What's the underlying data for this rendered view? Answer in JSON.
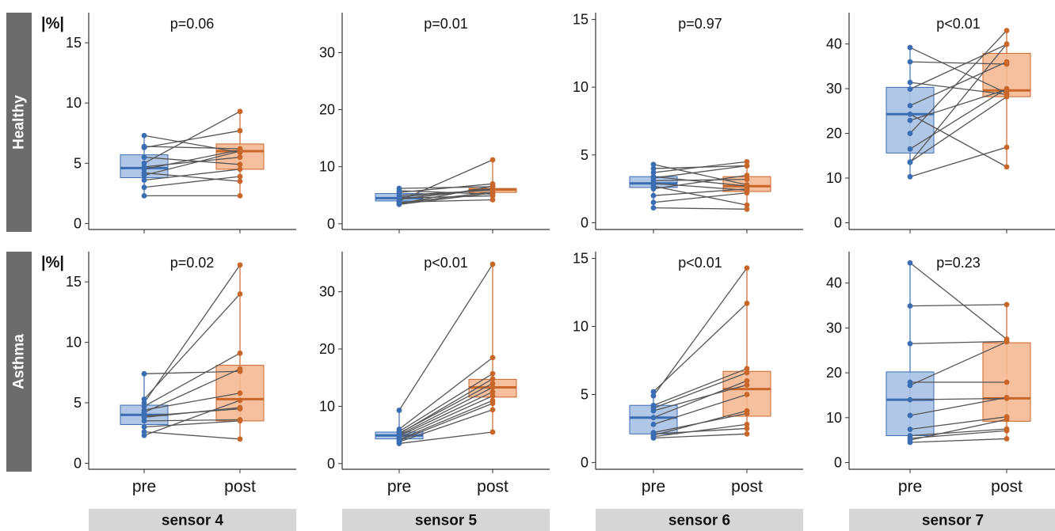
{
  "chart_data": {
    "type": "box",
    "y_unit_label": "|%|",
    "x_categories": [
      "pre",
      "post"
    ],
    "rows": [
      "Healthy",
      "Asthma"
    ],
    "columns": [
      "sensor 4",
      "sensor 5",
      "sensor 6",
      "sensor 7"
    ],
    "colors": {
      "pre": "#3b6db3",
      "pre_fill": "#a9c1e6",
      "post": "#c9662a",
      "post_fill": "#f5b994",
      "pair_line": "#555555",
      "strip": "#6c6c6c",
      "label_bg": "#d6d6d6"
    },
    "panels": [
      {
        "row": "Healthy",
        "sensor": "sensor 4",
        "p_text": "p=0.06",
        "ylim": [
          -0.5,
          17.5
        ],
        "yticks": [
          0,
          5,
          10,
          15
        ],
        "show_unit": true,
        "pre": {
          "q1": 3.8,
          "median": 4.6,
          "q3": 5.7,
          "min": 2.3,
          "max": 7.3
        },
        "post": {
          "q1": 4.5,
          "median": 6.0,
          "q3": 6.6,
          "min": 2.3,
          "max": 9.3
        },
        "pairs": [
          [
            7.3,
            5.9
          ],
          [
            6.4,
            6.2
          ],
          [
            6.3,
            7.7
          ],
          [
            5.5,
            4.9
          ],
          [
            5.0,
            9.3
          ],
          [
            4.7,
            5.5
          ],
          [
            4.5,
            6.1
          ],
          [
            4.2,
            3.5
          ],
          [
            4.0,
            6.0
          ],
          [
            3.6,
            4.5
          ],
          [
            3.0,
            3.9
          ],
          [
            2.3,
            2.3
          ]
        ]
      },
      {
        "row": "Healthy",
        "sensor": "sensor 5",
        "p_text": "p=0.01",
        "ylim": [
          -1,
          37
        ],
        "yticks": [
          0,
          10,
          20,
          30
        ],
        "pre": {
          "q1": 4.0,
          "median": 4.5,
          "q3": 5.3,
          "min": 3.4,
          "max": 6.2
        },
        "post": {
          "q1": 5.5,
          "median": 6.0,
          "q3": 6.2,
          "min": 4.2,
          "max": 11.2
        },
        "pairs": [
          [
            6.2,
            6.5
          ],
          [
            5.8,
            5.2
          ],
          [
            5.5,
            7.0
          ],
          [
            5.0,
            5.9
          ],
          [
            4.7,
            6.0
          ],
          [
            4.5,
            4.9
          ],
          [
            4.3,
            6.2
          ],
          [
            4.0,
            11.2
          ],
          [
            3.8,
            4.2
          ],
          [
            3.6,
            5.6
          ],
          [
            3.5,
            6.6
          ],
          [
            3.4,
            5.4
          ]
        ]
      },
      {
        "row": "Healthy",
        "sensor": "sensor 6",
        "p_text": "p=0.97",
        "ylim": [
          -0.5,
          15.5
        ],
        "yticks": [
          0,
          5,
          10,
          15
        ],
        "pre": {
          "q1": 2.6,
          "median": 2.9,
          "q3": 3.4,
          "min": 1.0,
          "max": 4.3
        },
        "post": {
          "q1": 2.3,
          "median": 2.7,
          "q3": 3.4,
          "min": 1.0,
          "max": 4.5
        },
        "pairs": [
          [
            4.3,
            2.8
          ],
          [
            4.0,
            4.2
          ],
          [
            3.7,
            4.5
          ],
          [
            3.4,
            2.7
          ],
          [
            3.1,
            3.2
          ],
          [
            2.9,
            2.4
          ],
          [
            2.7,
            1.3
          ],
          [
            2.5,
            3.5
          ],
          [
            2.0,
            2.5
          ],
          [
            1.5,
            2.2
          ],
          [
            1.1,
            1.0
          ],
          [
            3.3,
            4.2
          ]
        ]
      },
      {
        "row": "Healthy",
        "sensor": "sensor 7",
        "p_text": "p<0.01",
        "ylim": [
          -1.5,
          47
        ],
        "yticks": [
          0,
          10,
          20,
          30,
          40
        ],
        "pre": {
          "q1": 15.6,
          "median": 24.3,
          "q3": 30.3,
          "min": 10.3,
          "max": 39.2
        },
        "post": {
          "q1": 28.2,
          "median": 29.6,
          "q3": 37.9,
          "min": 12.5,
          "max": 43.0
        },
        "pairs": [
          [
            39.2,
            29.0
          ],
          [
            36.0,
            35.5
          ],
          [
            31.4,
            28.7
          ],
          [
            29.9,
            39.9
          ],
          [
            26.2,
            36.0
          ],
          [
            22.9,
            29.8
          ],
          [
            20.0,
            43.0
          ],
          [
            16.5,
            30.0
          ],
          [
            13.6,
            28.2
          ],
          [
            13.5,
            40.0
          ],
          [
            10.3,
            16.9
          ],
          [
            24.3,
            12.5
          ]
        ]
      },
      {
        "row": "Asthma",
        "sensor": "sensor 4",
        "p_text": "p=0.02",
        "ylim": [
          -0.5,
          17.5
        ],
        "yticks": [
          0,
          5,
          10,
          15
        ],
        "show_unit": true,
        "pre": {
          "q1": 3.2,
          "median": 4.0,
          "q3": 4.8,
          "min": 2.3,
          "max": 7.4
        },
        "post": {
          "q1": 3.5,
          "median": 5.3,
          "q3": 8.1,
          "min": 2.0,
          "max": 16.4
        },
        "pairs": [
          [
            7.4,
            7.6
          ],
          [
            5.3,
            14.0
          ],
          [
            5.0,
            16.4
          ],
          [
            4.7,
            9.1
          ],
          [
            4.4,
            5.8
          ],
          [
            4.2,
            7.8
          ],
          [
            3.8,
            4.6
          ],
          [
            3.5,
            3.6
          ],
          [
            3.0,
            3.5
          ],
          [
            2.6,
            2.0
          ],
          [
            2.3,
            5.2
          ],
          [
            3.9,
            4.5
          ]
        ]
      },
      {
        "row": "Asthma",
        "sensor": "sensor 5",
        "p_text": "p<0.01",
        "ylim": [
          -1,
          37
        ],
        "yticks": [
          0,
          10,
          20,
          30
        ],
        "pre": {
          "q1": 4.3,
          "median": 4.9,
          "q3": 5.5,
          "min": 3.5,
          "max": 9.3
        },
        "post": {
          "q1": 11.6,
          "median": 13.3,
          "q3": 14.7,
          "min": 5.5,
          "max": 34.8
        },
        "pairs": [
          [
            9.3,
            34.8
          ],
          [
            6.0,
            18.5
          ],
          [
            5.6,
            15.7
          ],
          [
            5.3,
            14.0
          ],
          [
            5.0,
            13.3
          ],
          [
            4.8,
            12.5
          ],
          [
            4.5,
            11.8
          ],
          [
            4.2,
            11.0
          ],
          [
            4.0,
            10.5
          ],
          [
            3.8,
            9.4
          ],
          [
            3.5,
            5.5
          ],
          [
            5.2,
            14.8
          ]
        ]
      },
      {
        "row": "Asthma",
        "sensor": "sensor 6",
        "p_text": "p<0.01",
        "ylim": [
          -0.5,
          15.5
        ],
        "yticks": [
          0,
          5,
          10,
          15
        ],
        "pre": {
          "q1": 2.1,
          "median": 3.3,
          "q3": 4.2,
          "min": 1.8,
          "max": 5.2
        },
        "post": {
          "q1": 3.4,
          "median": 5.4,
          "q3": 6.7,
          "min": 2.1,
          "max": 14.3
        },
        "pairs": [
          [
            5.2,
            11.7
          ],
          [
            4.9,
            14.3
          ],
          [
            4.2,
            6.9
          ],
          [
            4.0,
            6.6
          ],
          [
            3.8,
            5.7
          ],
          [
            2.8,
            5.0
          ],
          [
            2.2,
            3.6
          ],
          [
            2.0,
            3.8
          ],
          [
            1.9,
            2.8
          ],
          [
            1.8,
            2.1
          ],
          [
            2.1,
            2.5
          ],
          [
            3.3,
            6.0
          ]
        ]
      },
      {
        "row": "Asthma",
        "sensor": "sensor 7",
        "p_text": "p=0.23",
        "ylim": [
          -1.5,
          47
        ],
        "yticks": [
          0,
          10,
          20,
          30,
          40
        ],
        "pre": {
          "q1": 6.0,
          "median": 14.0,
          "q3": 20.2,
          "min": 4.5,
          "max": 44.5
        },
        "post": {
          "q1": 9.2,
          "median": 14.3,
          "q3": 26.7,
          "min": 5.3,
          "max": 35.2
        },
        "pairs": [
          [
            44.5,
            27.5
          ],
          [
            34.9,
            35.2
          ],
          [
            26.5,
            27.0
          ],
          [
            17.9,
            17.9
          ],
          [
            17.2,
            26.9
          ],
          [
            10.5,
            14.5
          ],
          [
            7.4,
            10.2
          ],
          [
            6.0,
            7.5
          ],
          [
            5.0,
            9.6
          ],
          [
            4.5,
            5.3
          ],
          [
            5.4,
            7.1
          ],
          [
            14.0,
            14.3
          ]
        ]
      }
    ]
  }
}
